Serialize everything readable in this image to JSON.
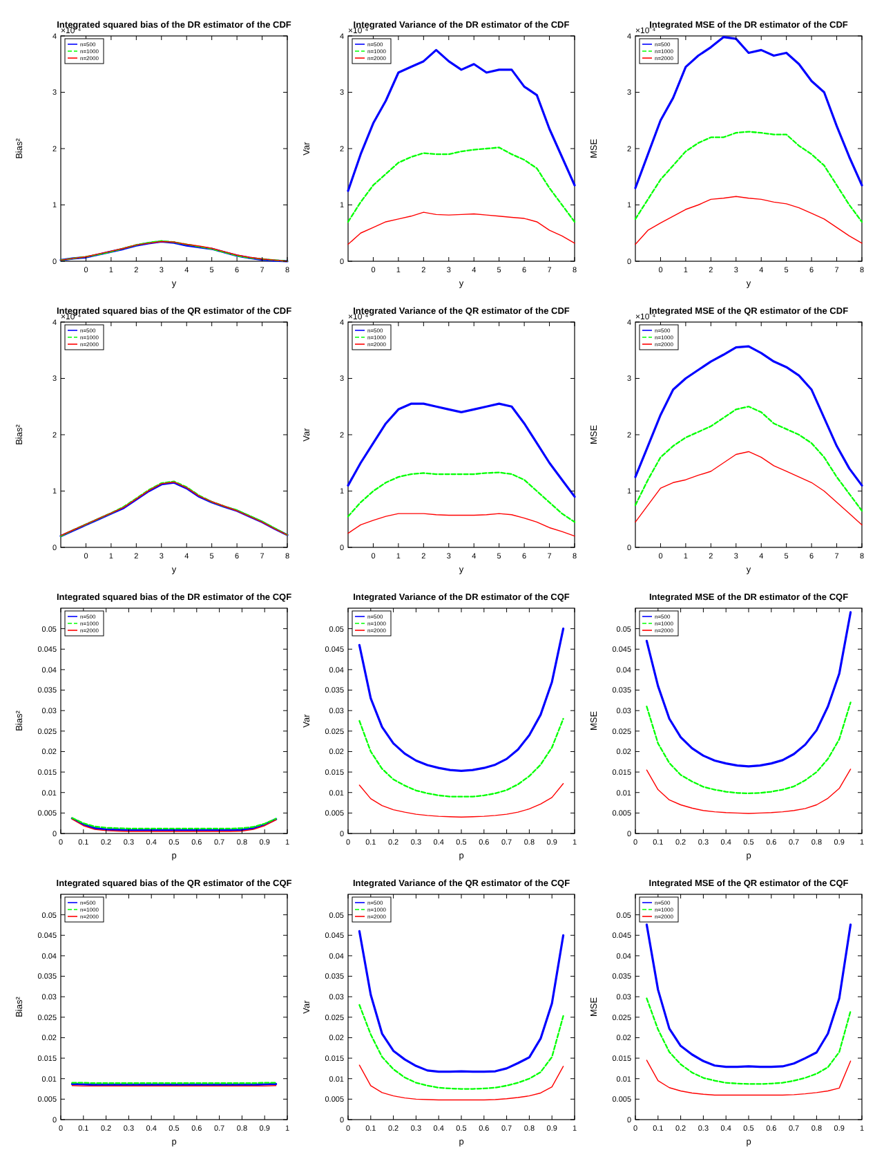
{
  "chart_data": [
    {
      "type": "line",
      "title": "Integrated squared bias of the DR estimator of the CDF",
      "xlabel": "y",
      "ylabel": "Bias²",
      "annotations": [
        "×10⁻⁴"
      ],
      "legend": "top left",
      "xlim": [
        -1,
        8
      ],
      "xticks": [
        0,
        1,
        2,
        3,
        4,
        5,
        6,
        7,
        8
      ],
      "ylim": [
        0,
        4
      ],
      "yticks": [
        0,
        1,
        2,
        3,
        4
      ],
      "x": [
        -1,
        -0.5,
        0,
        0.5,
        1,
        1.5,
        2,
        2.5,
        3,
        3.5,
        4,
        4.5,
        5,
        5.5,
        6,
        6.5,
        7,
        7.5,
        8
      ],
      "series": [
        {
          "name": "n=500",
          "color": "#0000ff",
          "values": [
            0.02,
            0.05,
            0.07,
            0.12,
            0.17,
            0.22,
            0.28,
            0.32,
            0.35,
            0.33,
            0.28,
            0.25,
            0.22,
            0.16,
            0.1,
            0.06,
            0.03,
            0.01,
            0.0
          ]
        },
        {
          "name": "n=1000",
          "color": "#00ff00",
          "line_style": "dashed",
          "values": [
            0.02,
            0.05,
            0.08,
            0.12,
            0.17,
            0.23,
            0.29,
            0.33,
            0.36,
            0.34,
            0.3,
            0.26,
            0.22,
            0.16,
            0.1,
            0.06,
            0.04,
            0.02,
            0.0
          ]
        },
        {
          "name": "n=2000",
          "color": "#ff0000",
          "values": [
            0.02,
            0.05,
            0.08,
            0.13,
            0.18,
            0.23,
            0.29,
            0.32,
            0.35,
            0.34,
            0.3,
            0.27,
            0.23,
            0.17,
            0.11,
            0.07,
            0.04,
            0.02,
            0.0
          ]
        }
      ]
    },
    {
      "type": "line",
      "title": "Integrated Variance of the DR estimator of the CDF",
      "xlabel": "y",
      "ylabel": "Var",
      "annotations": [
        "×10⁻⁴"
      ],
      "legend": "top left",
      "xlim": [
        -1,
        8
      ],
      "xticks": [
        0,
        1,
        2,
        3,
        4,
        5,
        6,
        7,
        8
      ],
      "ylim": [
        0,
        4
      ],
      "yticks": [
        0,
        1,
        2,
        3,
        4
      ],
      "x": [
        -1,
        -0.5,
        0,
        0.5,
        1,
        1.5,
        2,
        2.5,
        3,
        3.5,
        4,
        4.5,
        5,
        5.5,
        6,
        6.5,
        7,
        7.5,
        8
      ],
      "series": [
        {
          "name": "n=500",
          "color": "#0000ff",
          "values": [
            1.25,
            1.9,
            2.45,
            2.85,
            3.35,
            3.45,
            3.55,
            3.75,
            3.55,
            3.4,
            3.5,
            3.35,
            3.4,
            3.4,
            3.1,
            2.95,
            2.35,
            1.85,
            1.35
          ]
        },
        {
          "name": "n=1000",
          "color": "#00ff00",
          "line_style": "dashed",
          "values": [
            0.7,
            1.05,
            1.35,
            1.55,
            1.75,
            1.85,
            1.92,
            1.9,
            1.9,
            1.95,
            1.98,
            2.0,
            2.02,
            1.9,
            1.8,
            1.65,
            1.3,
            1.0,
            0.7
          ]
        },
        {
          "name": "n=2000",
          "color": "#ff0000",
          "values": [
            0.3,
            0.5,
            0.6,
            0.7,
            0.75,
            0.8,
            0.87,
            0.83,
            0.82,
            0.83,
            0.84,
            0.82,
            0.8,
            0.78,
            0.76,
            0.7,
            0.55,
            0.45,
            0.32
          ]
        }
      ]
    },
    {
      "type": "line",
      "title": "Integrated MSE of the DR estimator of the CDF",
      "xlabel": "y",
      "ylabel": "MSE",
      "annotations": [
        "×10⁻⁴"
      ],
      "legend": "top left",
      "xlim": [
        -1,
        8
      ],
      "xticks": [
        0,
        1,
        2,
        3,
        4,
        5,
        6,
        7,
        8
      ],
      "ylim": [
        0,
        4
      ],
      "yticks": [
        0,
        1,
        2,
        3,
        4
      ],
      "x": [
        -1,
        -0.5,
        0,
        0.5,
        1,
        1.5,
        2,
        2.5,
        3,
        3.5,
        4,
        4.5,
        5,
        5.5,
        6,
        6.5,
        7,
        7.5,
        8
      ],
      "series": [
        {
          "name": "n=500",
          "color": "#0000ff",
          "values": [
            1.3,
            1.9,
            2.5,
            2.9,
            3.45,
            3.65,
            3.8,
            3.98,
            3.95,
            3.7,
            3.75,
            3.65,
            3.7,
            3.5,
            3.2,
            3.0,
            2.4,
            1.85,
            1.35
          ]
        },
        {
          "name": "n=1000",
          "color": "#00ff00",
          "line_style": "dashed",
          "values": [
            0.75,
            1.1,
            1.45,
            1.7,
            1.95,
            2.1,
            2.2,
            2.2,
            2.28,
            2.3,
            2.28,
            2.25,
            2.25,
            2.05,
            1.9,
            1.7,
            1.35,
            1.0,
            0.7
          ]
        },
        {
          "name": "n=2000",
          "color": "#ff0000",
          "values": [
            0.3,
            0.55,
            0.68,
            0.8,
            0.92,
            1.0,
            1.1,
            1.12,
            1.15,
            1.12,
            1.1,
            1.05,
            1.02,
            0.95,
            0.85,
            0.75,
            0.6,
            0.45,
            0.32
          ]
        }
      ]
    },
    {
      "type": "line",
      "title": "Integrated squared bias of the QR estimator of the CDF",
      "xlabel": "y",
      "ylabel": "Bias²",
      "annotations": [
        "×10⁻⁴"
      ],
      "legend": "top left",
      "xlim": [
        -1,
        8
      ],
      "xticks": [
        0,
        1,
        2,
        3,
        4,
        5,
        6,
        7,
        8
      ],
      "ylim": [
        0,
        4
      ],
      "yticks": [
        0,
        1,
        2,
        3,
        4
      ],
      "x": [
        -1,
        -0.5,
        0,
        0.5,
        1,
        1.5,
        2,
        2.5,
        3,
        3.5,
        4,
        4.5,
        5,
        5.5,
        6,
        6.5,
        7,
        7.5,
        8
      ],
      "series": [
        {
          "name": "n=500",
          "color": "#0000ff",
          "values": [
            0.2,
            0.3,
            0.4,
            0.5,
            0.6,
            0.7,
            0.85,
            1.0,
            1.12,
            1.15,
            1.05,
            0.9,
            0.8,
            0.72,
            0.65,
            0.55,
            0.45,
            0.33,
            0.22
          ]
        },
        {
          "name": "n=1000",
          "color": "#00ff00",
          "line_style": "dashed",
          "values": [
            0.2,
            0.31,
            0.41,
            0.51,
            0.61,
            0.72,
            0.87,
            1.02,
            1.14,
            1.17,
            1.07,
            0.92,
            0.81,
            0.73,
            0.66,
            0.56,
            0.46,
            0.34,
            0.22
          ]
        },
        {
          "name": "n=2000",
          "color": "#ff0000",
          "values": [
            0.21,
            0.31,
            0.41,
            0.51,
            0.61,
            0.71,
            0.86,
            1.01,
            1.13,
            1.16,
            1.06,
            0.91,
            0.81,
            0.73,
            0.65,
            0.55,
            0.45,
            0.33,
            0.22
          ]
        }
      ]
    },
    {
      "type": "line",
      "title": "Integrated Variance of the QR estimator of the CDF",
      "xlabel": "y",
      "ylabel": "Var",
      "annotations": [
        "×10⁻⁴"
      ],
      "legend": "top left",
      "xlim": [
        -1,
        8
      ],
      "xticks": [
        0,
        1,
        2,
        3,
        4,
        5,
        6,
        7,
        8
      ],
      "ylim": [
        0,
        4
      ],
      "yticks": [
        0,
        1,
        2,
        3,
        4
      ],
      "x": [
        -1,
        -0.5,
        0,
        0.5,
        1,
        1.5,
        2,
        2.5,
        3,
        3.5,
        4,
        4.5,
        5,
        5.5,
        6,
        6.5,
        7,
        7.5,
        8
      ],
      "series": [
        {
          "name": "n=500",
          "color": "#0000ff",
          "values": [
            1.1,
            1.5,
            1.85,
            2.2,
            2.45,
            2.55,
            2.55,
            2.5,
            2.45,
            2.4,
            2.45,
            2.5,
            2.55,
            2.5,
            2.2,
            1.85,
            1.5,
            1.2,
            0.9
          ]
        },
        {
          "name": "n=1000",
          "color": "#00ff00",
          "line_style": "dashed",
          "values": [
            0.55,
            0.8,
            1.0,
            1.15,
            1.25,
            1.3,
            1.32,
            1.3,
            1.3,
            1.3,
            1.3,
            1.32,
            1.33,
            1.3,
            1.2,
            1.0,
            0.8,
            0.6,
            0.45
          ]
        },
        {
          "name": "n=2000",
          "color": "#ff0000",
          "values": [
            0.25,
            0.4,
            0.48,
            0.55,
            0.6,
            0.6,
            0.6,
            0.58,
            0.57,
            0.57,
            0.57,
            0.58,
            0.6,
            0.58,
            0.52,
            0.45,
            0.35,
            0.28,
            0.2
          ]
        }
      ]
    },
    {
      "type": "line",
      "title": "Integrated MSE of the QR estimator of the CDF",
      "xlabel": "y",
      "ylabel": "MSE",
      "annotations": [
        "×10⁻⁴"
      ],
      "legend": "top left",
      "xlim": [
        -1,
        8
      ],
      "xticks": [
        0,
        1,
        2,
        3,
        4,
        5,
        6,
        7,
        8
      ],
      "ylim": [
        0,
        4
      ],
      "yticks": [
        0,
        1,
        2,
        3,
        4
      ],
      "x": [
        -1,
        -0.5,
        0,
        0.5,
        1,
        1.5,
        2,
        2.5,
        3,
        3.5,
        4,
        4.5,
        5,
        5.5,
        6,
        6.5,
        7,
        7.5,
        8
      ],
      "series": [
        {
          "name": "n=500",
          "color": "#0000ff",
          "values": [
            1.25,
            1.8,
            2.35,
            2.8,
            3.0,
            3.15,
            3.3,
            3.42,
            3.55,
            3.57,
            3.45,
            3.3,
            3.2,
            3.05,
            2.8,
            2.3,
            1.8,
            1.4,
            1.1
          ]
        },
        {
          "name": "n=1000",
          "color": "#00ff00",
          "line_style": "dashed",
          "values": [
            0.75,
            1.2,
            1.6,
            1.8,
            1.95,
            2.05,
            2.15,
            2.3,
            2.45,
            2.5,
            2.4,
            2.2,
            2.1,
            2.0,
            1.85,
            1.6,
            1.25,
            0.95,
            0.65
          ]
        },
        {
          "name": "n=2000",
          "color": "#ff0000",
          "values": [
            0.45,
            0.75,
            1.05,
            1.15,
            1.2,
            1.28,
            1.35,
            1.5,
            1.65,
            1.7,
            1.6,
            1.45,
            1.35,
            1.25,
            1.15,
            1.0,
            0.8,
            0.6,
            0.4
          ]
        }
      ]
    },
    {
      "type": "line",
      "title": "Integrated squared bias of the DR estimator of the CQF",
      "xlabel": "p",
      "ylabel": "Bias²",
      "legend": "top left",
      "xlim": [
        0,
        1
      ],
      "xticks": [
        0,
        0.1,
        0.2,
        0.3,
        0.4,
        0.5,
        0.6,
        0.7,
        0.8,
        0.9,
        1
      ],
      "ylim": [
        0,
        0.055
      ],
      "yticks": [
        0,
        0.005,
        0.01,
        0.015,
        0.02,
        0.025,
        0.03,
        0.035,
        0.04,
        0.045,
        0.05
      ],
      "x": [
        0.05,
        0.1,
        0.15,
        0.2,
        0.25,
        0.3,
        0.35,
        0.4,
        0.45,
        0.5,
        0.55,
        0.6,
        0.65,
        0.7,
        0.75,
        0.8,
        0.85,
        0.9,
        0.95
      ],
      "series": [
        {
          "name": "n=500",
          "color": "#0000ff",
          "values": [
            0.0037,
            0.0022,
            0.0013,
            0.001,
            0.0009,
            0.0008,
            0.0008,
            0.0008,
            0.0008,
            0.0008,
            0.0008,
            0.0008,
            0.0008,
            0.0008,
            0.0008,
            0.0009,
            0.0013,
            0.0022,
            0.0035
          ]
        },
        {
          "name": "n=1000",
          "color": "#00ff00",
          "line_style": "dashed",
          "values": [
            0.0038,
            0.0025,
            0.0017,
            0.0014,
            0.0013,
            0.0012,
            0.0012,
            0.0012,
            0.0012,
            0.0012,
            0.0012,
            0.0012,
            0.0012,
            0.0012,
            0.0012,
            0.0013,
            0.0016,
            0.0024,
            0.0036
          ]
        },
        {
          "name": "n=2000",
          "color": "#ff0000",
          "values": [
            0.0035,
            0.0019,
            0.001,
            0.0007,
            0.0006,
            0.0005,
            0.0005,
            0.0005,
            0.0005,
            0.0005,
            0.0005,
            0.0005,
            0.0005,
            0.0005,
            0.0005,
            0.0006,
            0.001,
            0.0019,
            0.0033
          ]
        }
      ]
    },
    {
      "type": "line",
      "title": "Integrated Variance of the DR estimator of the CQF",
      "xlabel": "p",
      "ylabel": "Var",
      "legend": "top left",
      "xlim": [
        0,
        1
      ],
      "xticks": [
        0,
        0.1,
        0.2,
        0.3,
        0.4,
        0.5,
        0.6,
        0.7,
        0.8,
        0.9,
        1
      ],
      "ylim": [
        0,
        0.055
      ],
      "yticks": [
        0,
        0.005,
        0.01,
        0.015,
        0.02,
        0.025,
        0.03,
        0.035,
        0.04,
        0.045,
        0.05
      ],
      "x": [
        0.05,
        0.1,
        0.15,
        0.2,
        0.25,
        0.3,
        0.35,
        0.4,
        0.45,
        0.5,
        0.55,
        0.6,
        0.65,
        0.7,
        0.75,
        0.8,
        0.85,
        0.9,
        0.95
      ],
      "series": [
        {
          "name": "n=500",
          "color": "#0000ff",
          "values": [
            0.046,
            0.033,
            0.026,
            0.022,
            0.0195,
            0.0178,
            0.0167,
            0.016,
            0.0155,
            0.0153,
            0.0155,
            0.016,
            0.0168,
            0.0182,
            0.0205,
            0.024,
            0.029,
            0.037,
            0.05
          ]
        },
        {
          "name": "n=1000",
          "color": "#00ff00",
          "line_style": "dashed",
          "values": [
            0.0275,
            0.02,
            0.0158,
            0.0132,
            0.0117,
            0.0105,
            0.0098,
            0.0093,
            0.009,
            0.009,
            0.009,
            0.0093,
            0.0098,
            0.0106,
            0.012,
            0.014,
            0.0168,
            0.021,
            0.028
          ]
        },
        {
          "name": "n=2000",
          "color": "#ff0000",
          "values": [
            0.0118,
            0.0085,
            0.0068,
            0.0058,
            0.0052,
            0.0047,
            0.0044,
            0.0042,
            0.0041,
            0.004,
            0.0041,
            0.0042,
            0.0044,
            0.0047,
            0.0052,
            0.006,
            0.0072,
            0.0088,
            0.0122
          ]
        }
      ]
    },
    {
      "type": "line",
      "title": "Integrated MSE of the DR estimator of the CQF",
      "xlabel": "p",
      "ylabel": "MSE",
      "legend": "top left",
      "xlim": [
        0,
        1
      ],
      "xticks": [
        0,
        0.1,
        0.2,
        0.3,
        0.4,
        0.5,
        0.6,
        0.7,
        0.8,
        0.9,
        1
      ],
      "ylim": [
        0,
        0.055
      ],
      "yticks": [
        0,
        0.005,
        0.01,
        0.015,
        0.02,
        0.025,
        0.03,
        0.035,
        0.04,
        0.045,
        0.05
      ],
      "x": [
        0.05,
        0.1,
        0.15,
        0.2,
        0.25,
        0.3,
        0.35,
        0.4,
        0.45,
        0.5,
        0.55,
        0.6,
        0.65,
        0.7,
        0.75,
        0.8,
        0.85,
        0.9,
        0.95
      ],
      "series": [
        {
          "name": "n=500",
          "color": "#0000ff",
          "values": [
            0.047,
            0.036,
            0.028,
            0.0235,
            0.0208,
            0.019,
            0.0178,
            0.0171,
            0.0166,
            0.0164,
            0.0166,
            0.0171,
            0.0179,
            0.0194,
            0.0217,
            0.0252,
            0.031,
            0.039,
            0.054
          ]
        },
        {
          "name": "n=1000",
          "color": "#00ff00",
          "line_style": "dashed",
          "values": [
            0.031,
            0.022,
            0.0172,
            0.0143,
            0.0127,
            0.0114,
            0.0107,
            0.0102,
            0.0099,
            0.0098,
            0.0099,
            0.0102,
            0.0107,
            0.0115,
            0.013,
            0.015,
            0.0182,
            0.023,
            0.032
          ]
        },
        {
          "name": "n=2000",
          "color": "#ff0000",
          "values": [
            0.0155,
            0.0107,
            0.0082,
            0.007,
            0.0062,
            0.0056,
            0.0053,
            0.0051,
            0.005,
            0.0049,
            0.005,
            0.0051,
            0.0053,
            0.0056,
            0.0061,
            0.007,
            0.0086,
            0.011,
            0.0157
          ]
        }
      ]
    },
    {
      "type": "line",
      "title": "Integrated squared bias of the QR estimator of the CQF",
      "xlabel": "p",
      "ylabel": "Bias²",
      "legend": "top left",
      "xlim": [
        0,
        1
      ],
      "xticks": [
        0,
        0.1,
        0.2,
        0.3,
        0.4,
        0.5,
        0.6,
        0.7,
        0.8,
        0.9,
        1
      ],
      "ylim": [
        0,
        0.055
      ],
      "yticks": [
        0,
        0.005,
        0.01,
        0.015,
        0.02,
        0.025,
        0.03,
        0.035,
        0.04,
        0.045,
        0.05
      ],
      "x": [
        0.05,
        0.1,
        0.15,
        0.2,
        0.25,
        0.3,
        0.35,
        0.4,
        0.45,
        0.5,
        0.55,
        0.6,
        0.65,
        0.7,
        0.75,
        0.8,
        0.85,
        0.9,
        0.95
      ],
      "series": [
        {
          "name": "n=500",
          "color": "#0000ff",
          "values": [
            0.0087,
            0.0086,
            0.0085,
            0.0085,
            0.0085,
            0.0085,
            0.0085,
            0.0085,
            0.0085,
            0.0085,
            0.0085,
            0.0085,
            0.0085,
            0.0085,
            0.0085,
            0.0085,
            0.0085,
            0.0086,
            0.0087
          ]
        },
        {
          "name": "n=1000",
          "color": "#00ff00",
          "line_style": "dashed",
          "values": [
            0.009,
            0.009,
            0.0089,
            0.0089,
            0.0089,
            0.0089,
            0.0089,
            0.0089,
            0.0089,
            0.0089,
            0.0089,
            0.0089,
            0.0089,
            0.0089,
            0.0089,
            0.0089,
            0.0089,
            0.009,
            0.009
          ]
        },
        {
          "name": "n=2000",
          "color": "#ff0000",
          "values": [
            0.0083,
            0.0082,
            0.0082,
            0.0082,
            0.0082,
            0.0082,
            0.0082,
            0.0082,
            0.0082,
            0.0082,
            0.0082,
            0.0082,
            0.0082,
            0.0082,
            0.0082,
            0.0082,
            0.0082,
            0.0082,
            0.0083
          ]
        }
      ]
    },
    {
      "type": "line",
      "title": "Integrated Variance of the QR estimator of the CQF",
      "xlabel": "p",
      "ylabel": "Var",
      "legend": "top left",
      "xlim": [
        0,
        1
      ],
      "xticks": [
        0,
        0.1,
        0.2,
        0.3,
        0.4,
        0.5,
        0.6,
        0.7,
        0.8,
        0.9,
        1
      ],
      "ylim": [
        0,
        0.055
      ],
      "yticks": [
        0,
        0.005,
        0.01,
        0.015,
        0.02,
        0.025,
        0.03,
        0.035,
        0.04,
        0.045,
        0.05
      ],
      "x": [
        0.05,
        0.1,
        0.15,
        0.2,
        0.25,
        0.3,
        0.35,
        0.4,
        0.45,
        0.5,
        0.55,
        0.6,
        0.65,
        0.7,
        0.75,
        0.8,
        0.85,
        0.9,
        0.95
      ],
      "series": [
        {
          "name": "n=500",
          "color": "#0000ff",
          "values": [
            0.046,
            0.0305,
            0.021,
            0.0168,
            0.0147,
            0.0131,
            0.012,
            0.0117,
            0.0117,
            0.0118,
            0.0117,
            0.0117,
            0.0118,
            0.0125,
            0.0138,
            0.0152,
            0.0198,
            0.0284,
            0.045
          ]
        },
        {
          "name": "n=1000",
          "color": "#00ff00",
          "line_style": "dashed",
          "values": [
            0.028,
            0.0208,
            0.0153,
            0.0123,
            0.0103,
            0.009,
            0.0083,
            0.0078,
            0.0076,
            0.0075,
            0.0075,
            0.0076,
            0.0078,
            0.0083,
            0.009,
            0.01,
            0.0116,
            0.0153,
            0.0253
          ]
        },
        {
          "name": "n=2000",
          "color": "#ff0000",
          "values": [
            0.0133,
            0.0083,
            0.0066,
            0.0058,
            0.0053,
            0.005,
            0.0049,
            0.0048,
            0.0048,
            0.0048,
            0.0048,
            0.0048,
            0.0049,
            0.0051,
            0.0054,
            0.0058,
            0.0065,
            0.008,
            0.013
          ]
        }
      ]
    },
    {
      "type": "line",
      "title": "Integrated MSE of the QR estimator of the CQF",
      "xlabel": "p",
      "ylabel": "MSE",
      "legend": "top left",
      "xlim": [
        0,
        1
      ],
      "xticks": [
        0,
        0.1,
        0.2,
        0.3,
        0.4,
        0.5,
        0.6,
        0.7,
        0.8,
        0.9,
        1
      ],
      "ylim": [
        0,
        0.055
      ],
      "yticks": [
        0,
        0.005,
        0.01,
        0.015,
        0.02,
        0.025,
        0.03,
        0.035,
        0.04,
        0.045,
        0.05
      ],
      "x": [
        0.05,
        0.1,
        0.15,
        0.2,
        0.25,
        0.3,
        0.35,
        0.4,
        0.45,
        0.5,
        0.55,
        0.6,
        0.65,
        0.7,
        0.75,
        0.8,
        0.85,
        0.9,
        0.95
      ],
      "series": [
        {
          "name": "n=500",
          "color": "#0000ff",
          "values": [
            0.0476,
            0.0317,
            0.0222,
            0.018,
            0.0159,
            0.0143,
            0.0132,
            0.0129,
            0.0129,
            0.013,
            0.0129,
            0.0129,
            0.013,
            0.0137,
            0.015,
            0.0164,
            0.021,
            0.0296,
            0.0476
          ]
        },
        {
          "name": "n=1000",
          "color": "#00ff00",
          "line_style": "dashed",
          "values": [
            0.0296,
            0.022,
            0.0165,
            0.0135,
            0.0115,
            0.0102,
            0.0095,
            0.009,
            0.0088,
            0.0087,
            0.0087,
            0.0088,
            0.009,
            0.0095,
            0.0102,
            0.0112,
            0.0128,
            0.0165,
            0.0265
          ]
        },
        {
          "name": "n=2000",
          "color": "#ff0000",
          "values": [
            0.0145,
            0.0095,
            0.0078,
            0.007,
            0.0065,
            0.0062,
            0.006,
            0.006,
            0.006,
            0.006,
            0.006,
            0.006,
            0.006,
            0.0061,
            0.0063,
            0.0066,
            0.007,
            0.0077,
            0.0143
          ]
        }
      ]
    }
  ]
}
